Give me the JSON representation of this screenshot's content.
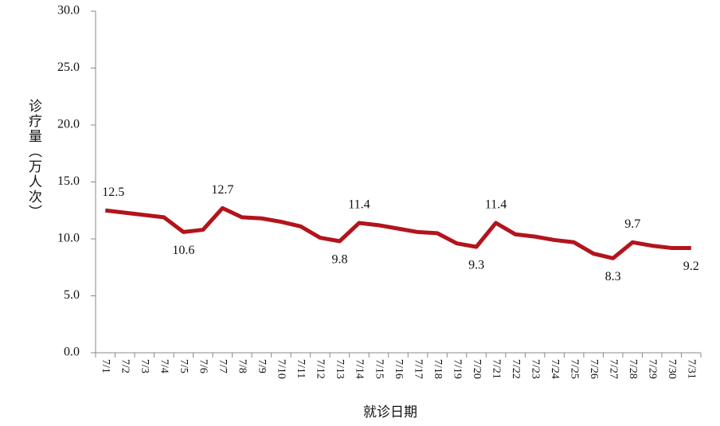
{
  "chart_data": {
    "type": "line",
    "y_label": "诊疗量（万人次）",
    "x_label": "就诊日期",
    "categories": [
      "7/1",
      "7/2",
      "7/3",
      "7/4",
      "7/5",
      "7/6",
      "7/7",
      "7/8",
      "7/9",
      "7/10",
      "7/11",
      "7/12",
      "7/13",
      "7/14",
      "7/15",
      "7/16",
      "7/17",
      "7/18",
      "7/19",
      "7/20",
      "7/21",
      "7/22",
      "7/23",
      "7/24",
      "7/25",
      "7/26",
      "7/27",
      "7/28",
      "7/29",
      "7/30",
      "7/31"
    ],
    "values": [
      12.5,
      12.3,
      12.1,
      11.9,
      10.6,
      10.8,
      12.7,
      11.9,
      11.8,
      11.5,
      11.1,
      10.1,
      9.8,
      11.4,
      11.2,
      10.9,
      10.6,
      10.5,
      9.6,
      9.3,
      11.4,
      10.4,
      10.2,
      9.9,
      9.7,
      8.7,
      8.3,
      9.7,
      9.4,
      9.2,
      9.2
    ],
    "value_labels": [
      "12.5",
      null,
      null,
      null,
      "10.6",
      null,
      "12.7",
      null,
      null,
      null,
      null,
      null,
      "9.8",
      "11.4",
      null,
      null,
      null,
      null,
      null,
      "9.3",
      "11.4",
      null,
      null,
      null,
      null,
      null,
      "8.3",
      "9.7",
      null,
      null,
      "9.2"
    ],
    "color": "#b3141c",
    "ylim": [
      0,
      30
    ],
    "yticks": [
      {
        "value": 0,
        "label": "0.0"
      },
      {
        "value": 5,
        "label": "5.0"
      },
      {
        "value": 10,
        "label": "10.0"
      },
      {
        "value": 15,
        "label": "15.0"
      },
      {
        "value": 20,
        "label": "20.0"
      },
      {
        "value": 25,
        "label": "25.0"
      },
      {
        "value": 30,
        "label": "30.0"
      }
    ],
    "grid": false
  }
}
